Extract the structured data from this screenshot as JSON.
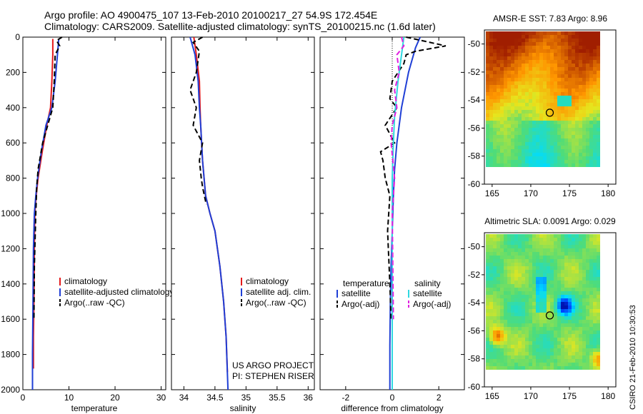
{
  "header": {
    "title_line1": "Argo profile: AO 4900475_107 13-Feb-2010 20100217_27 54.9S 172.454E",
    "title_line2": "Climatology: CARS2009. Satellite-adjusted climatology: synTS_20100215.nc (1.6d later)"
  },
  "side_label": "CSIRO 21-Feb-2010 10:30:53",
  "colors": {
    "climatology": "#e41a1c",
    "satellite": "#1f3fd6",
    "argo": "#000000",
    "sal_satellite": "#2fd8e0",
    "sal_argo": "#e020e0"
  },
  "chart_data": [
    {
      "type": "line",
      "xlabel": "temperature",
      "xlim": [
        0,
        31
      ],
      "ylim": [
        0,
        2000
      ],
      "y_reversed": true,
      "xticks": [
        0,
        10,
        20,
        30
      ],
      "yticks": [
        0,
        200,
        400,
        600,
        800,
        1000,
        1200,
        1400,
        1600,
        1800,
        2000
      ],
      "legend_position": "lower-center",
      "series": [
        {
          "name": "climatology",
          "color": "#e41a1c",
          "dash": "solid",
          "x": [
            6.5,
            6.5,
            6.3,
            6.0,
            5.2,
            4.2,
            3.3,
            2.9,
            2.6,
            2.5,
            2.4,
            2.3,
            2.3
          ],
          "y": [
            10,
            100,
            250,
            400,
            500,
            650,
            800,
            900,
            1000,
            1200,
            1500,
            1700,
            1880
          ]
        },
        {
          "name": "satellite-adjusted climatology",
          "color": "#1f3fd6",
          "dash": "solid",
          "x": [
            7.8,
            7.5,
            7.0,
            6.3,
            5.0,
            4.0,
            3.2,
            2.8,
            2.5,
            2.3,
            2.2,
            2.1,
            2.1
          ],
          "y": [
            10,
            100,
            250,
            400,
            500,
            650,
            800,
            900,
            1000,
            1200,
            1500,
            1800,
            2000
          ]
        },
        {
          "name": "Argo(..raw -QC)",
          "color": "#000000",
          "dash": "dash",
          "x": [
            8.5,
            7.3,
            8.0,
            7.0,
            6.8,
            6.5,
            5.4,
            4.3,
            3.3,
            3.0,
            2.8,
            2.5,
            2.4
          ],
          "y": [
            0,
            20,
            50,
            100,
            250,
            400,
            500,
            600,
            750,
            850,
            1000,
            1300,
            1600
          ]
        }
      ]
    },
    {
      "type": "line",
      "xlabel": "salinity",
      "xlim": [
        33.8,
        36.1
      ],
      "ylim": [
        0,
        2000
      ],
      "y_reversed": true,
      "xticks": [
        34,
        34.5,
        35,
        35.5,
        36
      ],
      "legend_position": "lower-center",
      "annotations": [
        "US ARGO PROJECT",
        "PI: STEPHEN RISER"
      ],
      "series": [
        {
          "name": "climatology",
          "color": "#e41a1c",
          "dash": "solid",
          "x": [
            34.16,
            34.2,
            34.25,
            34.26,
            34.27,
            34.3,
            34.35,
            34.42,
            34.5,
            34.58,
            34.64,
            34.68,
            34.7
          ],
          "y": [
            0,
            100,
            250,
            400,
            500,
            700,
            900,
            1000,
            1100,
            1300,
            1500,
            1700,
            1900
          ]
        },
        {
          "name": "satellite adj. clim.",
          "color": "#1f3fd6",
          "dash": "solid",
          "x": [
            34.1,
            34.18,
            34.23,
            34.25,
            34.27,
            34.3,
            34.35,
            34.42,
            34.5,
            34.58,
            34.64,
            34.68,
            34.71
          ],
          "y": [
            0,
            100,
            250,
            400,
            500,
            700,
            900,
            1000,
            1100,
            1300,
            1500,
            1700,
            2000
          ]
        },
        {
          "name": "Argo(..raw -QC)",
          "color": "#000000",
          "dash": "dash",
          "x": [
            34.3,
            34.15,
            34.25,
            34.2,
            34.1,
            34.2,
            34.15,
            34.3,
            34.25,
            34.28,
            34.3,
            34.36
          ],
          "y": [
            0,
            30,
            80,
            200,
            300,
            400,
            500,
            600,
            700,
            800,
            850,
            950
          ]
        }
      ]
    },
    {
      "type": "line",
      "xlabel": "difference from climatology",
      "xlim": [
        -3.1,
        3.1
      ],
      "ylim": [
        0,
        2000
      ],
      "y_reversed": true,
      "xticks": [
        -2,
        0,
        2
      ],
      "xtick_labels": [
        "-2",
        "0",
        "2"
      ],
      "legend_groups": [
        "temperature",
        "salinity"
      ],
      "series": [
        {
          "name": "satellite",
          "group": "temperature",
          "color": "#1f3fd6",
          "dash": "solid",
          "x": [
            1.2,
            1.0,
            0.7,
            0.4,
            0.2,
            0.1,
            0.05,
            0.0,
            -0.05,
            -0.08,
            -0.1,
            -0.1
          ],
          "y": [
            0,
            60,
            200,
            400,
            600,
            750,
            900,
            1100,
            1300,
            1500,
            1750,
            2000
          ]
        },
        {
          "name": "Argo(-adj)",
          "group": "temperature",
          "color": "#000000",
          "dash": "dash",
          "x": [
            0.6,
            2.3,
            1.0,
            0.6,
            0.5,
            0.0,
            -0.1,
            0.2,
            -0.3,
            0.1,
            -0.5,
            -0.4,
            -0.3,
            -0.1,
            -0.2,
            -0.1,
            -0.05
          ],
          "y": [
            0,
            50,
            80,
            100,
            150,
            250,
            350,
            400,
            500,
            600,
            650,
            700,
            800,
            900,
            1100,
            1400,
            1600
          ]
        },
        {
          "name": "satellite",
          "group": "salinity",
          "color": "#2fd8e0",
          "dash": "solid",
          "x": [
            0.5,
            0.4,
            0.25,
            0.1,
            0.05,
            0.0,
            0.0,
            0.0,
            0.0,
            0.0
          ],
          "y": [
            0,
            100,
            250,
            450,
            600,
            800,
            1100,
            1400,
            1700,
            2000
          ]
        },
        {
          "name": "Argo(-adj)",
          "group": "salinity",
          "color": "#e020e0",
          "dash": "dash",
          "x": [
            0.4,
            0.5,
            0.2,
            0.3,
            0.1,
            0.2,
            0.0,
            -0.05,
            0.1,
            0.0,
            0.05
          ],
          "y": [
            0,
            50,
            100,
            200,
            300,
            400,
            500,
            600,
            800,
            1000,
            1600
          ]
        }
      ]
    },
    {
      "type": "heatmap",
      "title": "AMSR-E SST: 7.83 Argo: 8.96",
      "xlim": [
        164,
        181
      ],
      "ylim": [
        -60,
        -49
      ],
      "xticks": [
        165,
        170,
        175,
        180
      ],
      "yticks": [
        -50,
        -52,
        -54,
        -56,
        -58,
        -60
      ],
      "marker": {
        "lon": 172.454,
        "lat": -54.9
      }
    },
    {
      "type": "heatmap",
      "title": "Altimetric SLA: 0.0091 Argo: 0.029",
      "xlim": [
        164,
        181
      ],
      "ylim": [
        -60,
        -49
      ],
      "xticks": [
        165,
        170,
        175,
        180
      ],
      "yticks": [
        -50,
        -52,
        -54,
        -56,
        -58,
        -60
      ],
      "marker": {
        "lon": 172.454,
        "lat": -54.9
      }
    }
  ]
}
